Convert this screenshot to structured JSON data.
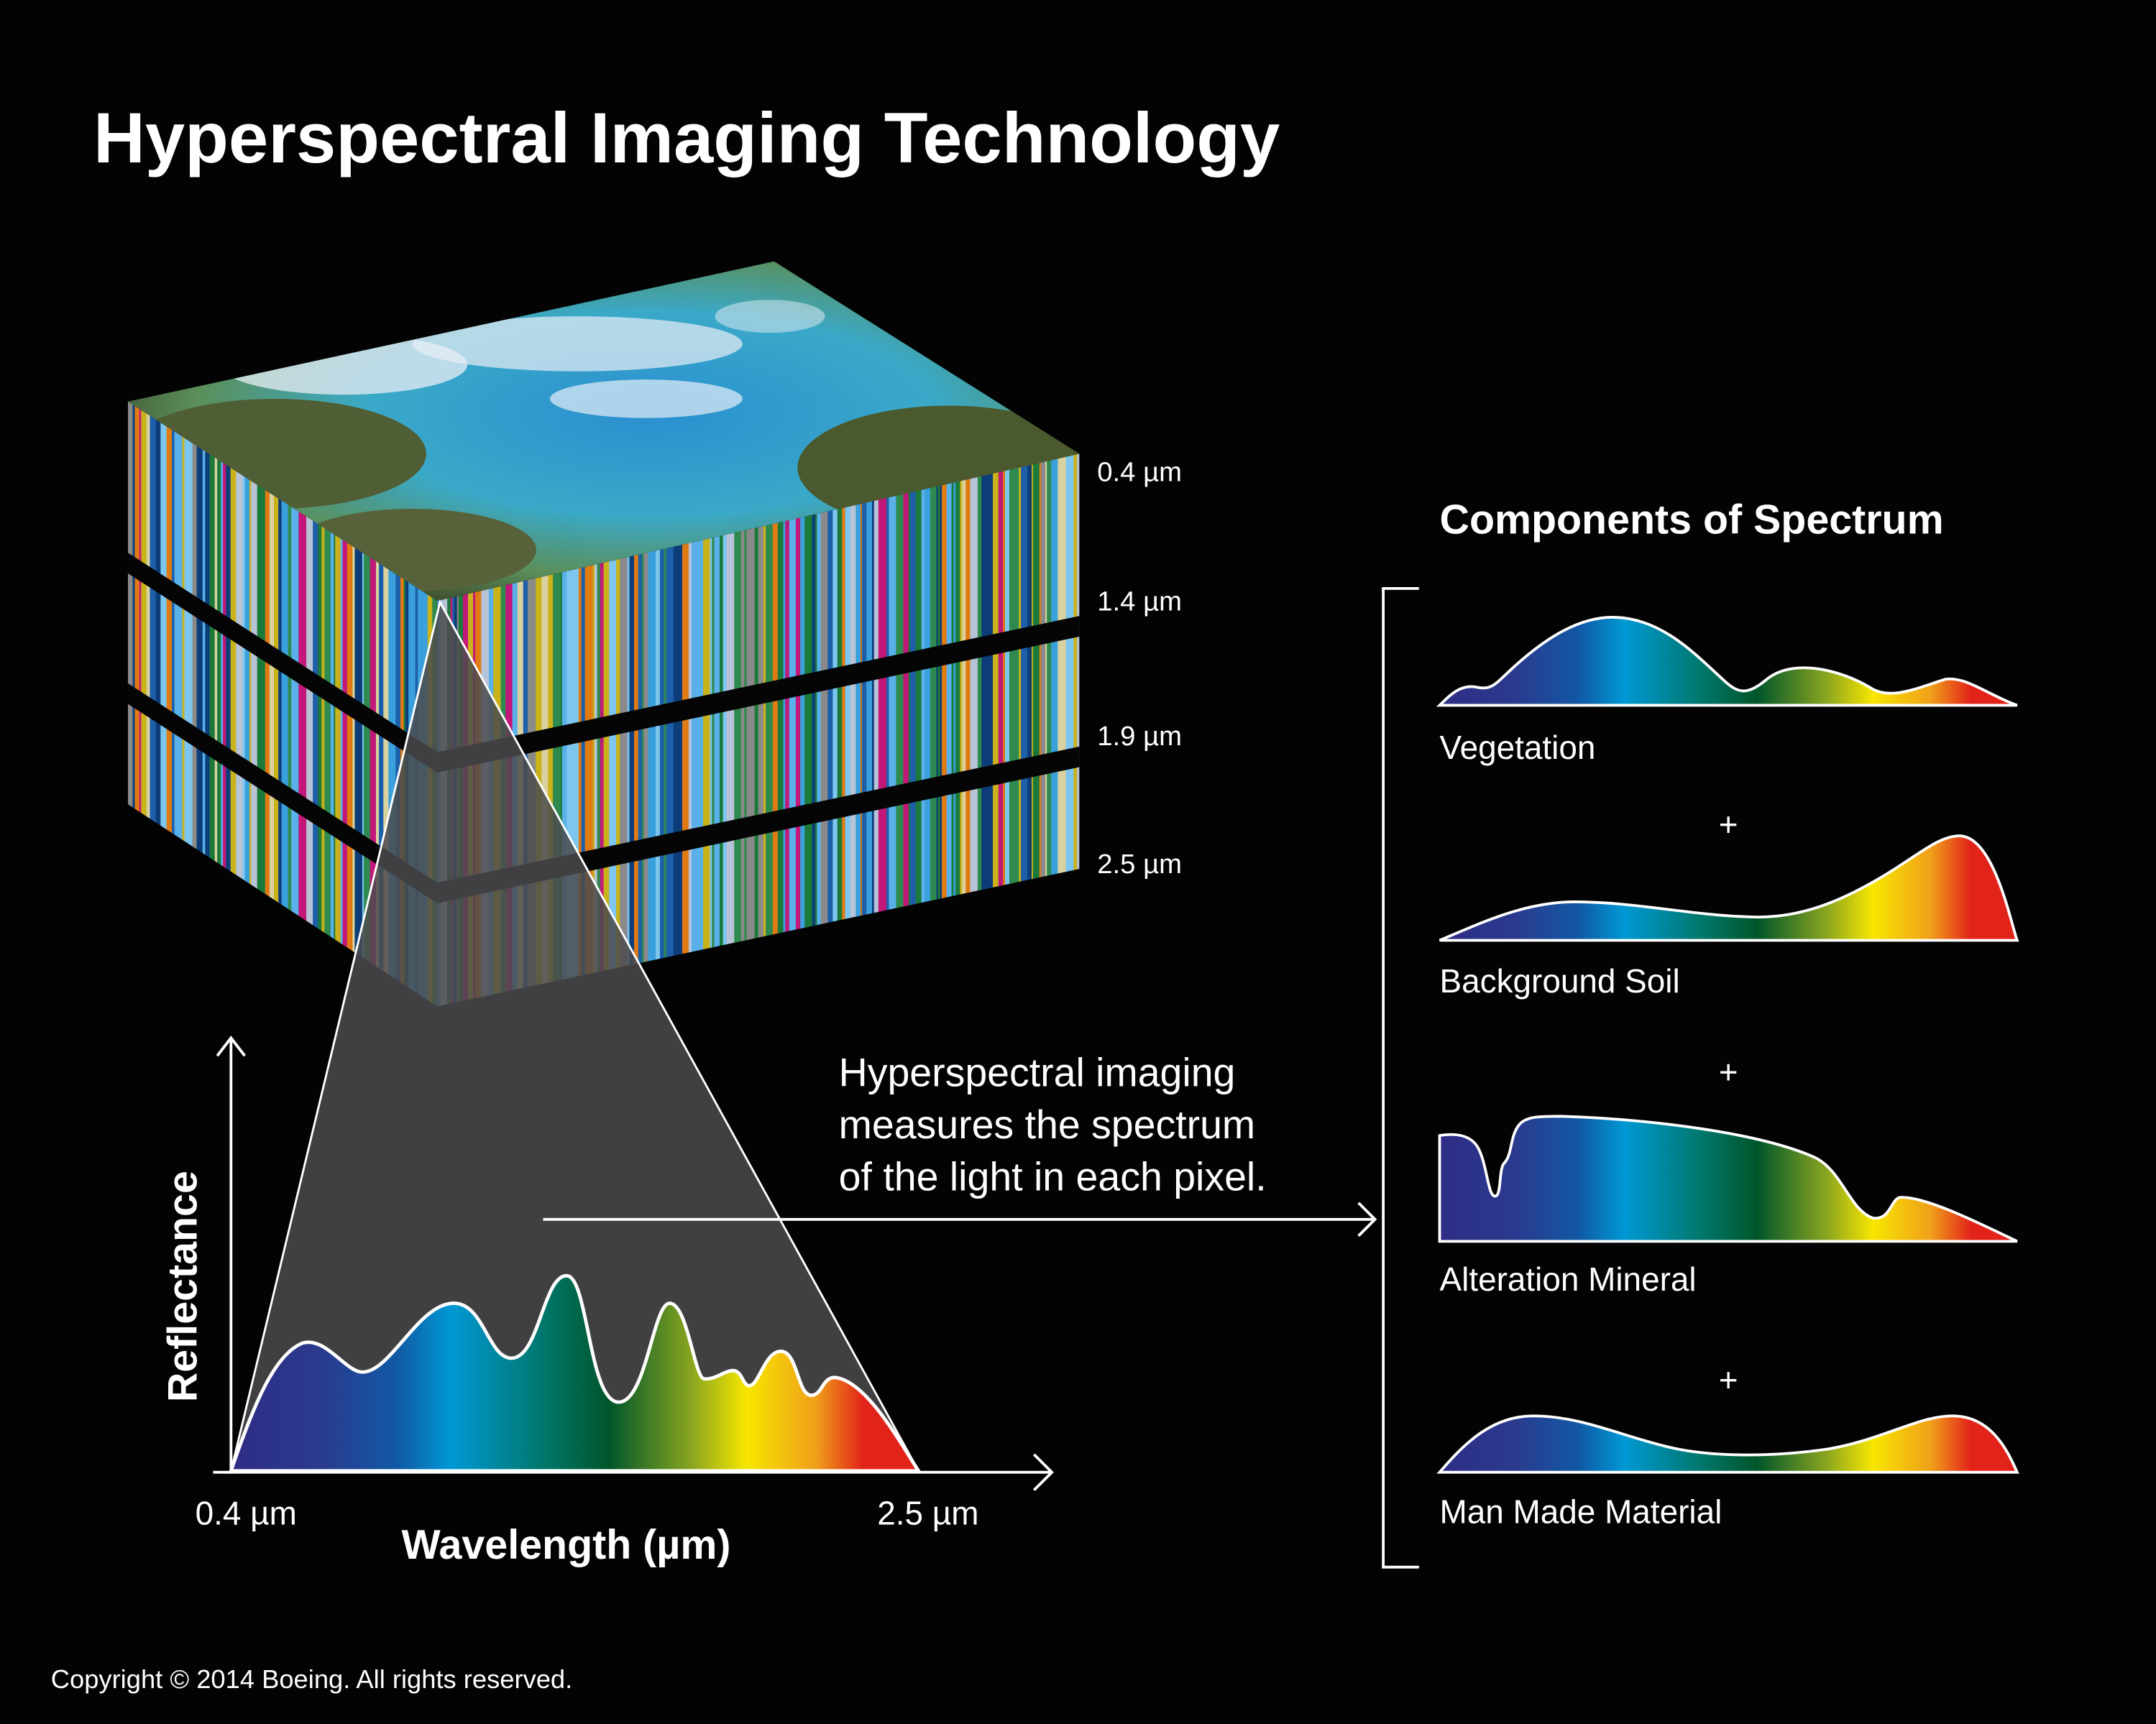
{
  "title": "Hyperspectral Imaging Technology",
  "cube": {
    "layer_labels": [
      "0.4 µm",
      "1.4 µm",
      "1.9 µm",
      "2.5 µm"
    ]
  },
  "description": {
    "lines": [
      "Hyperspectral imaging",
      "measures the spectrum",
      "of the light in each pixel."
    ]
  },
  "spectrum_plot": {
    "ylabel": "Reflectance",
    "xlabel": "Wavelength (µm)",
    "x_min_label": "0.4 µm",
    "x_max_label": "2.5 µm"
  },
  "components": {
    "title": "Components of Spectrum",
    "items": [
      {
        "label": "Vegetation"
      },
      {
        "label": "Background Soil"
      },
      {
        "label": "Alteration Mineral"
      },
      {
        "label": "Man Made Material"
      }
    ],
    "operator": "+"
  },
  "copyright": "Copyright © 2014 Boeing. All rights reserved.",
  "colors": {
    "background": "#030304",
    "pyramid": "#4b4b4d",
    "spectrum": [
      "#2e2d86",
      "#1b4f9c",
      "#0098d4",
      "#00766e",
      "#005a2a",
      "#8aa520",
      "#f5e600",
      "#f0a01a",
      "#e2231a"
    ]
  }
}
